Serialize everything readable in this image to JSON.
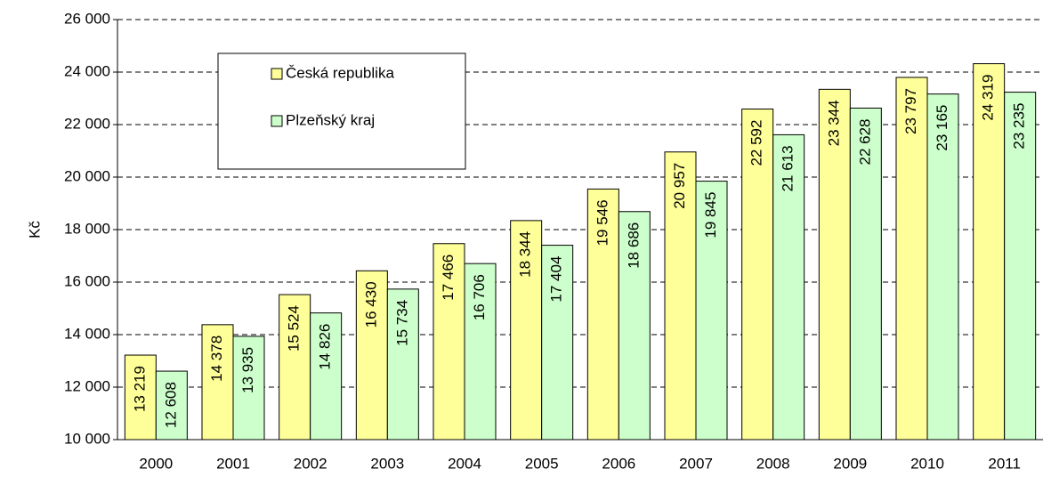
{
  "chart_data": {
    "type": "bar",
    "ylabel": "Kč",
    "categories": [
      "2000",
      "2001",
      "2002",
      "2003",
      "2004",
      "2005",
      "2006",
      "2007",
      "2008",
      "2009",
      "2010",
      "2011"
    ],
    "series": [
      {
        "name": "Česká republika",
        "color": "#ffff99",
        "values": [
          13219,
          14378,
          15524,
          16430,
          17466,
          18344,
          19546,
          20957,
          22592,
          23344,
          23797,
          24319
        ],
        "value_labels": [
          "13 219",
          "14 378",
          "15 524",
          "16 430",
          "17 466",
          "18 344",
          "19 546",
          "20 957",
          "22 592",
          "23 344",
          "23 797",
          "24 319"
        ]
      },
      {
        "name": "Plzeňský kraj",
        "color": "#ccffcc",
        "values": [
          12608,
          13935,
          14826,
          15734,
          16706,
          17404,
          18686,
          19845,
          21613,
          22628,
          23165,
          23235
        ],
        "value_labels": [
          "12 608",
          "13 935",
          "14 826",
          "15 734",
          "16 706",
          "17 404",
          "18 686",
          "19 845",
          "21 613",
          "22 628",
          "23 165",
          "23 235"
        ]
      }
    ],
    "ylim": [
      10000,
      26000
    ],
    "yticks": [
      {
        "value": 10000,
        "label": "10 000"
      },
      {
        "value": 12000,
        "label": "12 000"
      },
      {
        "value": 14000,
        "label": "14 000"
      },
      {
        "value": 16000,
        "label": "16 000"
      },
      {
        "value": 18000,
        "label": "18 000"
      },
      {
        "value": 20000,
        "label": "20 000"
      },
      {
        "value": 22000,
        "label": "22 000"
      },
      {
        "value": 24000,
        "label": "24 000"
      },
      {
        "value": 26000,
        "label": "26 000"
      }
    ],
    "grid": true
  }
}
